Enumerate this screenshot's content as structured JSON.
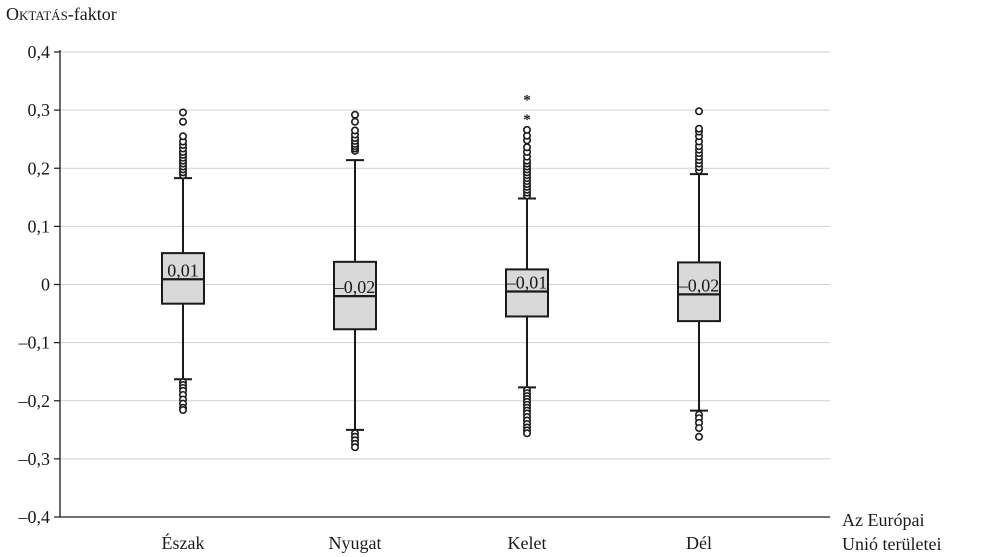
{
  "chart_data": {
    "type": "boxplot",
    "ylabel_prefix": "Oktatás",
    "ylabel_suffix": "-faktor",
    "xlabel_line1": "Az Európai",
    "xlabel_line2": "Unió területei",
    "ylim": [
      -0.4,
      0.4
    ],
    "yticks": [
      {
        "value": 0.4,
        "label": "0,4"
      },
      {
        "value": 0.3,
        "label": "0,3"
      },
      {
        "value": 0.2,
        "label": "0,2"
      },
      {
        "value": 0.1,
        "label": "0,1"
      },
      {
        "value": 0.0,
        "label": "0"
      },
      {
        "value": -0.1,
        "label": "–0,1"
      },
      {
        "value": -0.2,
        "label": "–0,2"
      },
      {
        "value": -0.3,
        "label": "–0,3"
      },
      {
        "value": -0.4,
        "label": "–0,4"
      }
    ],
    "grid": true,
    "colors": {
      "box_fill": "#d9d9d9",
      "line": "#1a1a1a",
      "grid": "#cfcfcf"
    },
    "categories": [
      "Észak",
      "Nyugat",
      "Kelet",
      "Dél"
    ],
    "boxes": [
      {
        "category": "Észak",
        "median": 0.009,
        "median_label": "0,01",
        "q1": -0.033,
        "q3": 0.054,
        "whisker_low": -0.163,
        "whisker_high": 0.183,
        "outliers_high": [
          0.188,
          0.193,
          0.198,
          0.203,
          0.208,
          0.213,
          0.218,
          0.223,
          0.228,
          0.234,
          0.24,
          0.246,
          0.255,
          0.28,
          0.296
        ],
        "outliers_low": [
          -0.168,
          -0.173,
          -0.178,
          -0.183,
          -0.19,
          -0.198,
          -0.205,
          -0.212,
          -0.216
        ],
        "extremes_high": [],
        "extremes_low": []
      },
      {
        "category": "Nyugat",
        "median": -0.02,
        "median_label": "–0,02",
        "q1": -0.077,
        "q3": 0.039,
        "whisker_low": -0.25,
        "whisker_high": 0.214,
        "outliers_high": [
          0.23,
          0.234,
          0.238,
          0.242,
          0.247,
          0.252,
          0.258,
          0.265,
          0.28,
          0.292
        ],
        "outliers_low": [
          -0.256,
          -0.262,
          -0.268,
          -0.274,
          -0.28
        ],
        "extremes_high": [],
        "extremes_low": []
      },
      {
        "category": "Kelet",
        "median": -0.012,
        "median_label": "–0,01",
        "q1": -0.055,
        "q3": 0.026,
        "whisker_low": -0.177,
        "whisker_high": 0.148,
        "outliers_high": [
          0.153,
          0.158,
          0.163,
          0.168,
          0.173,
          0.178,
          0.183,
          0.188,
          0.193,
          0.198,
          0.203,
          0.208,
          0.213,
          0.22,
          0.228,
          0.236,
          0.248,
          0.256,
          0.266
        ],
        "outliers_low": [
          -0.182,
          -0.187,
          -0.192,
          -0.197,
          -0.202,
          -0.207,
          -0.212,
          -0.217,
          -0.222,
          -0.228,
          -0.234,
          -0.24,
          -0.246,
          -0.251,
          -0.256
        ],
        "extremes_high": [
          0.288,
          0.322
        ],
        "extremes_low": []
      },
      {
        "category": "Dél",
        "median": -0.017,
        "median_label": "–0,02",
        "q1": -0.063,
        "q3": 0.038,
        "whisker_low": -0.217,
        "whisker_high": 0.19,
        "outliers_high": [
          0.196,
          0.202,
          0.208,
          0.214,
          0.22,
          0.226,
          0.232,
          0.238,
          0.246,
          0.255,
          0.263,
          0.268,
          0.298
        ],
        "outliers_low": [
          -0.224,
          -0.23,
          -0.238,
          -0.247,
          -0.262
        ],
        "extremes_high": [],
        "extremes_low": []
      }
    ]
  }
}
